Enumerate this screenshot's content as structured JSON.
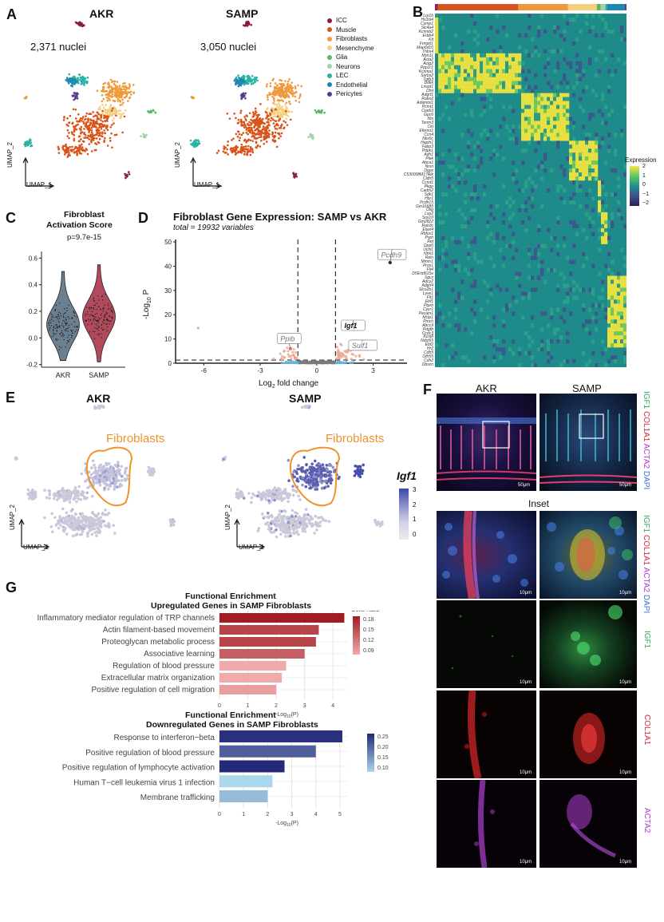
{
  "panels": {
    "A": "A",
    "B": "B",
    "C": "C",
    "D": "D",
    "E": "E",
    "F": "F",
    "G": "G"
  },
  "panelA": {
    "akr_title": "AKR",
    "samp_title": "SAMP",
    "akr_nuclei": "2,371 nuclei",
    "samp_nuclei": "3,050 nuclei",
    "umap_x": "UMAP_1",
    "umap_y": "UMAP_2",
    "legend": [
      {
        "label": "ICC",
        "color": "#8b1a4a"
      },
      {
        "label": "Muscle",
        "color": "#d95319"
      },
      {
        "label": "Fibroblasts",
        "color": "#ef9a3a"
      },
      {
        "label": "Mesenchyme",
        "color": "#f3cf7e"
      },
      {
        "label": "Glia",
        "color": "#5cb85c"
      },
      {
        "label": "Neurons",
        "color": "#9fd3a6"
      },
      {
        "label": "LEC",
        "color": "#2ab3a6"
      },
      {
        "label": "Endothelial",
        "color": "#1e88b0"
      },
      {
        "label": "Pericytes",
        "color": "#5b3b8c"
      }
    ]
  },
  "panelB": {
    "genes": [
      "Lrp1b",
      "Hs3st4",
      "Csmp1",
      "Slc4a4",
      "Kcnmb2",
      "Erbb4",
      "Kit",
      "Frmpd1",
      "Map6d10",
      "Thbs4",
      "Myh11",
      "Acta2",
      "Actg2",
      "Ppp1r1",
      "Kcnma1",
      "Sorbs2",
      "Tgfb3",
      "Ddkk",
      "Lmod1",
      "Dlnt",
      "Adgrf1",
      "Robo2",
      "Adamtsl1",
      "Pcmt1",
      "Cpeb3",
      "Gpc6",
      "Nts",
      "Tenm3",
      "Ckt",
      "Eferno1",
      "Ccn4",
      "Nkx6c",
      "Hapln1",
      "Fabp3",
      "Pdpk1",
      "Adh1",
      "Plek",
      "Abca1",
      "Nrxn",
      "Dqpx",
      "C530008M17Rik",
      "Cldn5",
      "Ccnd1",
      "Pkgp",
      "Cadm2",
      "Sdk1",
      "Hbr1",
      "Pcdh15",
      "Gm16685",
      "Olig",
      "Lsp2",
      "Sox10",
      "Gm2822",
      "Rab3c",
      "Elavl4",
      "Rbfox1",
      "Prph",
      "Ret",
      "Dpp6",
      "Uchl1",
      "Ntrk1",
      "Reln",
      "Mmrn1",
      "Prox1",
      "Flt4",
      "D5Ertd615e",
      "Sgcz",
      "Adcy2",
      "Adgrl4",
      "Slco2b1",
      "Lyve1",
      "Flt1",
      "Ebf1",
      "Ptprb",
      "Cyyr1",
      "Pecam1",
      "Mctp1",
      "Pmch",
      "Abcc9",
      "Pdgfb",
      "Ccdc3",
      "Kcnj8",
      "Ndufs5",
      "Ebf2",
      "Hr2",
      "Cdh5",
      "Olfr55",
      "Cdh2",
      "Dbscn"
    ],
    "legend_title": "Expression",
    "legend_ticks": [
      "2",
      "1",
      "0",
      "−1",
      "−2"
    ]
  },
  "panelC": {
    "title_line1": "Fibroblast",
    "title_line2": "Activation Score",
    "pvalue": "p=9.7e-15",
    "ytick_labels": [
      "0.6",
      "0.4",
      "0.2",
      "0.0",
      "-0.2"
    ],
    "groups": [
      "AKR",
      "SAMP"
    ],
    "chart_data": {
      "type": "violin",
      "title": "Fibroblast Activation Score",
      "categories": [
        "AKR",
        "SAMP"
      ],
      "ylim": [
        -0.22,
        0.62
      ],
      "yticks": [
        0.6,
        0.4,
        0.2,
        0.0,
        -0.2
      ],
      "medians": [
        0.1,
        0.16
      ],
      "series": [
        {
          "name": "AKR",
          "color": "#6b7f8f",
          "min": -0.17,
          "max": 0.5,
          "median": 0.1
        },
        {
          "name": "SAMP",
          "color": "#b24a5c",
          "min": -0.18,
          "max": 0.55,
          "median": 0.16
        }
      ],
      "annotation": "p=9.7e-15"
    }
  },
  "panelD": {
    "title": "Fibroblast Gene Expression: SAMP vs AKR",
    "subtitle": "total = 19932 variables",
    "ylabel": "-Log",
    "ylabel_sub": "10",
    "ylabel_tail": " P",
    "xlabel": "Log",
    "xlabel_sub": "2",
    "xlabel_tail": " fold change",
    "xtick_labels": [
      "-6",
      "-3",
      "0",
      "3"
    ],
    "ytick_labels": [
      "50",
      "40",
      "30",
      "20",
      "10",
      "0"
    ],
    "gene_labels": [
      "Pcdh9",
      "Igf1",
      "Sulf1",
      "Ppib"
    ],
    "chart_data": {
      "type": "scatter",
      "title": "Fibroblast Gene Expression: SAMP vs AKR",
      "xlabel": "Log2 fold change",
      "ylabel": "-Log10 P",
      "xlim": [
        -7.5,
        4.8
      ],
      "ylim": [
        0,
        51
      ],
      "thresholds": {
        "fc": [
          -1,
          1
        ],
        "p": 1.3
      },
      "labeled_points": [
        {
          "gene": "Pcdh9",
          "x": 3.9,
          "y": 41.5
        },
        {
          "gene": "Igf1",
          "x": 2.0,
          "y": 14.0
        },
        {
          "gene": "Sulf1",
          "x": 2.4,
          "y": 9.0
        },
        {
          "gene": "Ppib",
          "x": -1.4,
          "y": 6.0
        }
      ]
    }
  },
  "panelE": {
    "akr_title": "AKR",
    "samp_title": "SAMP",
    "cluster_label": "Fibroblasts",
    "gene": "Igf1",
    "ticks": [
      "3",
      "2",
      "1",
      "0"
    ],
    "umap_x": "UMAP_1",
    "umap_y": "UMAP_2"
  },
  "panelF": {
    "akr": "AKR",
    "samp": "SAMP",
    "inset": "Inset",
    "overview_scale": "50μm",
    "inset_scale": "10μm",
    "stain_labels": [
      {
        "text": "IGF1",
        "color": "#2eaa5c"
      },
      {
        "text": "COL1A1",
        "color": "#d7263d"
      },
      {
        "text": "ACTA2",
        "color": "#b03bd0"
      },
      {
        "text": "DAPI",
        "color": "#3a6fd8"
      }
    ],
    "channel_igf1": "IGF1",
    "channel_col1a1": "COL1A1",
    "channel_acta2": "ACTA2"
  },
  "panelG": {
    "up_title1": "Functional Enrichment",
    "up_title2": "Upregulated Genes in SAMP Fibroblasts",
    "down_title1": "Functional Enrichment",
    "down_title2": "Downregulated Genes in SAMP Fibroblasts",
    "xlabel": "-Log",
    "xlabel_sub": "10",
    "xlabel_tail": "(P)",
    "legend_title": "Gene Ratio",
    "up_legend_ticks": [
      "0.18",
      "0.15",
      "0.12",
      "0.09"
    ],
    "down_legend_ticks": [
      "0.25",
      "0.20",
      "0.15",
      "0.10"
    ],
    "up_xticks": [
      "0",
      "1",
      "2",
      "3",
      "4"
    ],
    "down_xticks": [
      "0",
      "1",
      "2",
      "3",
      "4",
      "5"
    ],
    "chart_data": [
      {
        "type": "bar",
        "orientation": "horizontal",
        "title": "Functional Enrichment Upregulated Genes in SAMP Fibroblasts",
        "xlabel": "-Log10(P)",
        "xlim": [
          0,
          4.5
        ],
        "categories": [
          "Inflammatory mediator regulation of TRP channels",
          "Actin filament-based movement",
          "Proteoglycan metabolic process",
          "Associative learning",
          "Regulation of blood pressure",
          "Extracellular matrix organization",
          "Positive regulation of cell migration"
        ],
        "values": [
          4.4,
          3.5,
          3.4,
          3.0,
          2.35,
          2.2,
          2.0
        ],
        "gene_ratio": [
          0.19,
          0.16,
          0.16,
          0.14,
          0.08,
          0.08,
          0.09
        ]
      },
      {
        "type": "bar",
        "orientation": "horizontal",
        "title": "Functional Enrichment Downregulated Genes in SAMP Fibroblasts",
        "xlabel": "-Log10(P)",
        "xlim": [
          0,
          5.3
        ],
        "categories": [
          "Response to interferon−beta",
          "Positive regulation of blood pressure",
          "Positive regulation of lymphocyte activation",
          "Human T−cell leukemia virus 1 infection",
          "Membrane trafficking"
        ],
        "values": [
          5.1,
          4.0,
          2.7,
          2.2,
          2.0
        ],
        "gene_ratio": [
          0.26,
          0.21,
          0.27,
          0.08,
          0.11
        ]
      }
    ]
  }
}
